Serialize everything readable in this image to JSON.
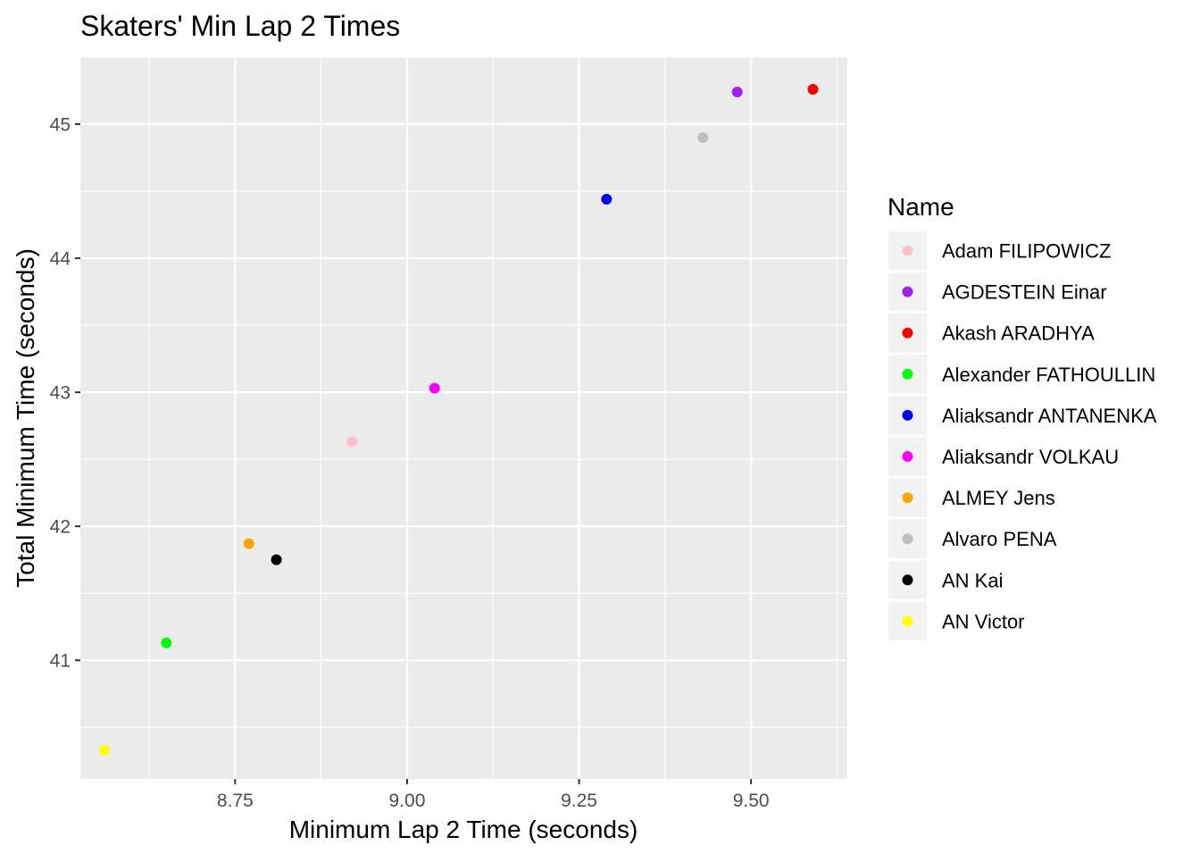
{
  "chart_data": {
    "type": "scatter",
    "title": "Skaters' Min Lap 2 Times",
    "xlabel": "Minimum Lap 2 Time (seconds)",
    "ylabel": "Total Minimum Time (seconds)",
    "xlim": [
      8.525,
      9.64
    ],
    "ylim": [
      40.115,
      45.5
    ],
    "x_ticks": [
      8.75,
      9.0,
      9.25,
      9.5
    ],
    "x_tick_labels": [
      "8.75",
      "9.00",
      "9.25",
      "9.50"
    ],
    "y_ticks": [
      41,
      42,
      43,
      44,
      45
    ],
    "y_tick_labels": [
      "41",
      "42",
      "43",
      "44",
      "45"
    ],
    "grid": true,
    "legend": {
      "title": "Name",
      "placement": "right"
    },
    "series": [
      {
        "name": "Adam FILIPOWICZ",
        "color": "#ffc0cb",
        "x": 8.92,
        "y": 42.63
      },
      {
        "name": "AGDESTEIN Einar",
        "color": "#a020f0",
        "x": 9.48,
        "y": 45.24
      },
      {
        "name": "Akash ARADHYA",
        "color": "#ff0000",
        "x": 9.59,
        "y": 45.26
      },
      {
        "name": "Alexander FATHOULLIN",
        "color": "#00ff00",
        "x": 8.65,
        "y": 41.13
      },
      {
        "name": "Aliaksandr ANTANENKA",
        "color": "#0000ff",
        "x": 9.29,
        "y": 44.44
      },
      {
        "name": "Aliaksandr VOLKAU",
        "color": "#ff00ff",
        "x": 9.04,
        "y": 43.03
      },
      {
        "name": "ALMEY Jens",
        "color": "#ffa500",
        "x": 8.77,
        "y": 41.87
      },
      {
        "name": "Alvaro PENA",
        "color": "#bebebe",
        "x": 9.43,
        "y": 44.9
      },
      {
        "name": "AN Kai",
        "color": "#000000",
        "x": 8.81,
        "y": 41.75
      },
      {
        "name": "AN Victor",
        "color": "#ffff00",
        "x": 8.56,
        "y": 40.33
      }
    ]
  }
}
